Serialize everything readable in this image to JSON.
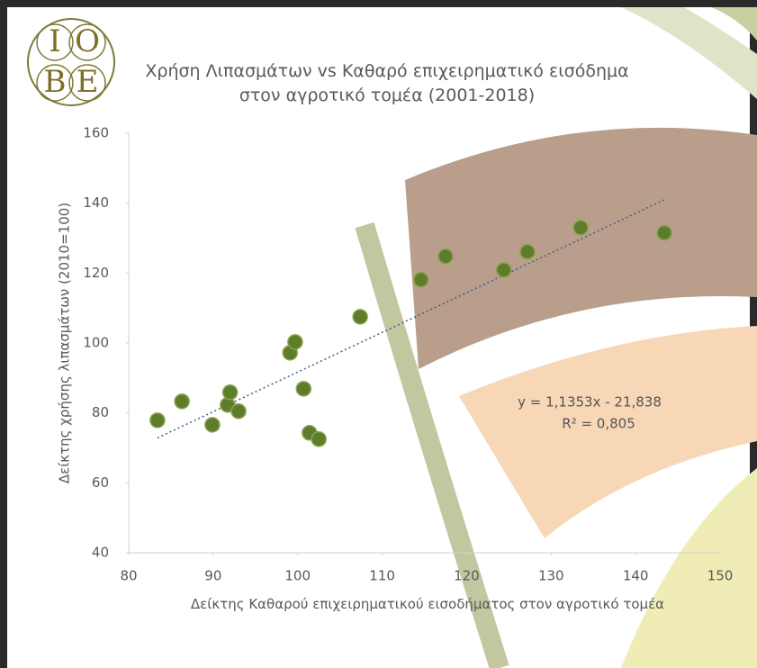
{
  "logo": [
    "I",
    "O",
    "B",
    "E"
  ],
  "chart_data": {
    "type": "scatter",
    "title": "Χρήση Λιπασμάτων vs Καθαρό επιχειρηματικό εισόδημα στον αγροτικό τομέα (2001-2018)",
    "x_label": "Δείκτης Καθαρού επιχειρηματικού εισοδήματος στον αγροτικό τομέα",
    "y_label": "Δείκτης χρήσης λιπασμάτων (2010=100)",
    "x": [
      83.4,
      86.3,
      89.9,
      91.7,
      92.0,
      93.0,
      99.1,
      99.7,
      100.7,
      101.4,
      102.5,
      107.4,
      114.6,
      117.5,
      124.4,
      127.2,
      133.5,
      143.4
    ],
    "values": [
      77.9,
      83.3,
      76.6,
      82.3,
      85.9,
      80.5,
      97.2,
      100.3,
      86.9,
      74.3,
      72.5,
      107.5,
      118.1,
      124.8,
      120.9,
      126.1,
      133.0,
      131.5
    ],
    "color": "#5e7d2b",
    "xlim": [
      80,
      150
    ],
    "xticks": [
      80,
      90,
      100,
      110,
      120,
      130,
      140,
      150
    ],
    "ylim": [
      40,
      160
    ],
    "yticks": [
      40,
      60,
      80,
      100,
      120,
      140,
      160
    ],
    "grid": false,
    "trendline": {
      "slope": 1.1353,
      "intercept": -21.838,
      "equation": "y = 1,1353x - 21,838",
      "r2": 0.805,
      "r2_label": "R² = 0,805"
    }
  }
}
